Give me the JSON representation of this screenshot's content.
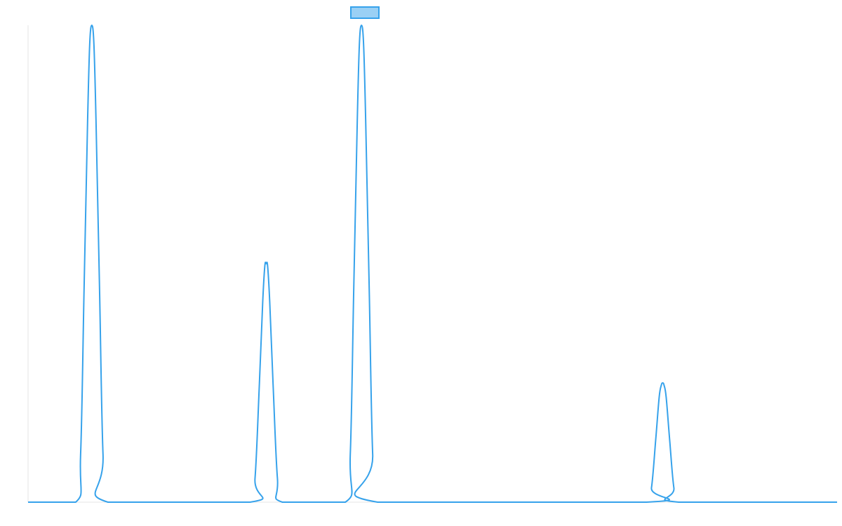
{
  "chart_data": {
    "type": "line",
    "title": "",
    "xlabel": "",
    "ylabel": "",
    "grid": false,
    "legend": "top-center",
    "xlim": [
      0,
      1155
    ],
    "ylim": [
      0,
      1
    ],
    "series": [
      {
        "color": "#36a2eb",
        "fill_color": "#9ad0f5",
        "points": [
          [
            0,
            0
          ],
          [
            68,
            0
          ],
          [
            75,
            0.1
          ],
          [
            80,
            0.45
          ],
          [
            85,
            0.8
          ],
          [
            88,
            0.96
          ],
          [
            91,
            1.0
          ],
          [
            94,
            0.96
          ],
          [
            97,
            0.8
          ],
          [
            102,
            0.45
          ],
          [
            107,
            0.1
          ],
          [
            114,
            0
          ],
          [
            317,
            0
          ],
          [
            324,
            0.05
          ],
          [
            330,
            0.24
          ],
          [
            335,
            0.42
          ],
          [
            338,
            0.495
          ],
          [
            340,
            0.5
          ],
          [
            342,
            0.495
          ],
          [
            345,
            0.42
          ],
          [
            350,
            0.24
          ],
          [
            356,
            0.05
          ],
          [
            363,
            0
          ],
          [
            453,
            0
          ],
          [
            460,
            0.1
          ],
          [
            465,
            0.45
          ],
          [
            470,
            0.8
          ],
          [
            473,
            0.96
          ],
          [
            476,
            1.0
          ],
          [
            479,
            0.96
          ],
          [
            482,
            0.8
          ],
          [
            487,
            0.45
          ],
          [
            492,
            0.1
          ],
          [
            499,
            0
          ],
          [
            883,
            0
          ],
          [
            890,
            0.03
          ],
          [
            896,
            0.13
          ],
          [
            901,
            0.22
          ],
          [
            904,
            0.245
          ],
          [
            906,
            0.25
          ],
          [
            908,
            0.245
          ],
          [
            911,
            0.22
          ],
          [
            916,
            0.13
          ],
          [
            922,
            0.03
          ],
          [
            929,
            0
          ],
          [
            1155,
            0
          ]
        ]
      }
    ]
  }
}
